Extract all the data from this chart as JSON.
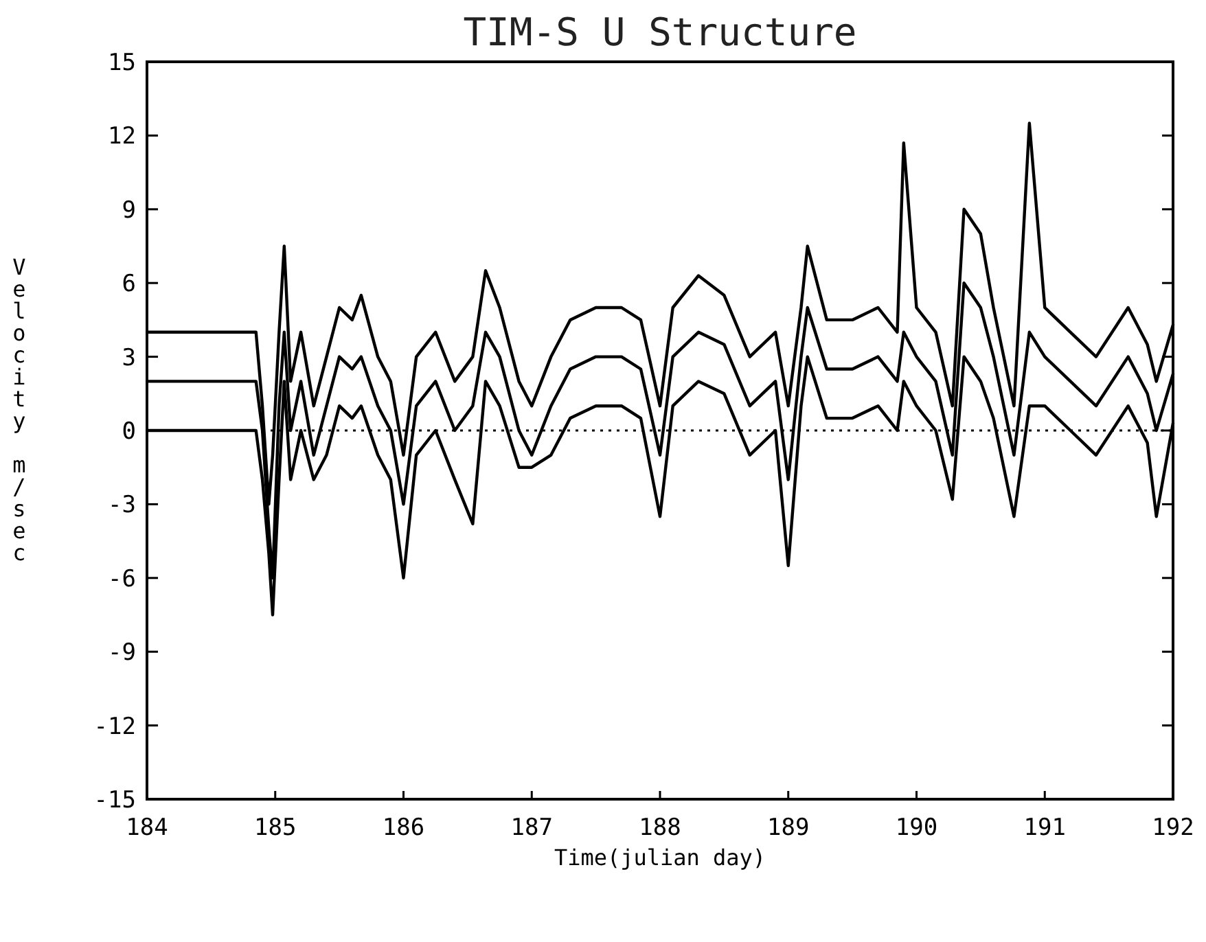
{
  "chart_data": {
    "type": "line",
    "title": "TIM-S U Structure",
    "xlabel": "Time(julian day)",
    "ylabel": "Velocity m/sec",
    "x": [
      184.0,
      184.85,
      184.9,
      184.95,
      184.98,
      185.03,
      185.07,
      185.12,
      185.2,
      185.3,
      185.4,
      185.5,
      185.6,
      185.67,
      185.8,
      185.9,
      186.0,
      186.1,
      186.25,
      186.4,
      186.54,
      186.64,
      186.75,
      186.9,
      187.0,
      187.15,
      187.3,
      187.5,
      187.7,
      187.85,
      188.0,
      188.1,
      188.3,
      188.5,
      188.7,
      188.9,
      189.0,
      189.1,
      189.15,
      189.3,
      189.5,
      189.7,
      189.85,
      189.9,
      190.0,
      190.15,
      190.28,
      190.37,
      190.5,
      190.6,
      190.76,
      190.88,
      191.0,
      191.2,
      191.4,
      191.65,
      191.8,
      191.87,
      192.0
    ],
    "series": [
      {
        "color": "#000000",
        "values": [
          4,
          4,
          1,
          -3,
          -1,
          4,
          7.5,
          2,
          4,
          1,
          3,
          5,
          4.5,
          5.5,
          3,
          2,
          -1,
          3,
          4,
          2,
          3,
          6.5,
          5,
          2,
          1,
          3,
          4.5,
          5,
          5,
          4.5,
          1,
          5,
          6.3,
          5.5,
          3,
          4,
          1,
          5,
          7.5,
          4.5,
          4.5,
          5,
          4,
          11.7,
          5,
          4,
          1,
          9,
          8,
          5,
          1,
          12.5,
          5,
          4,
          3,
          5,
          3.5,
          2,
          4.3
        ]
      },
      {
        "color": "#000000",
        "values": [
          2,
          2,
          0,
          -4,
          -6,
          1,
          4,
          0,
          2,
          -1,
          1,
          3,
          2.5,
          3,
          1,
          0,
          -3,
          1,
          2,
          0,
          1,
          4,
          3,
          0,
          -1,
          1,
          2.5,
          3,
          3,
          2.5,
          -1,
          3,
          4,
          3.5,
          1,
          2,
          -2,
          3,
          5,
          2.5,
          2.5,
          3,
          2,
          4,
          3,
          2,
          -1,
          6,
          5,
          3,
          -1,
          4,
          3,
          2,
          1,
          3,
          1.5,
          0,
          2.3
        ]
      },
      {
        "color": "#000000",
        "values": [
          0,
          0,
          -2,
          -5,
          -7.5,
          -2,
          2,
          -2,
          0,
          -2,
          -1,
          1,
          0.5,
          1,
          -1,
          -2,
          -6,
          -1,
          0,
          -2,
          -3.8,
          2,
          1,
          -1.5,
          -1.5,
          -1,
          0.5,
          1,
          1,
          0.5,
          -3.5,
          1,
          2,
          1.5,
          -1,
          0,
          -5.5,
          1,
          3,
          0.5,
          0.5,
          1,
          0,
          2,
          1,
          0,
          -2.8,
          3,
          2,
          0.5,
          -3.5,
          1,
          1,
          0,
          -1,
          1,
          -0.5,
          -3.5,
          0.3
        ]
      }
    ],
    "xlim": [
      184,
      192
    ],
    "xticks": [
      184,
      185,
      186,
      187,
      188,
      189,
      190,
      191,
      192
    ],
    "ylim": [
      -15,
      15
    ],
    "yticks": [
      -15,
      -12,
      -9,
      -6,
      -3,
      0,
      3,
      6,
      9,
      12,
      15
    ],
    "ref_lines": [
      {
        "axis": "y",
        "value": 0,
        "line_style": "dotted"
      }
    ],
    "grid": false,
    "marker": "none",
    "line_style": "solid"
  }
}
